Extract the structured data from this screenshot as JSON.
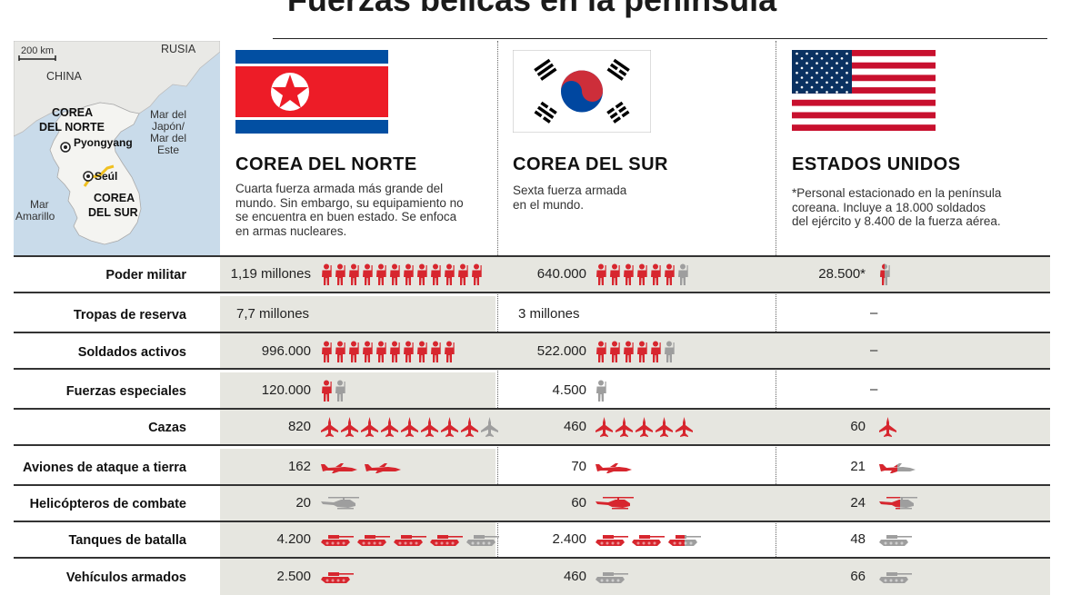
{
  "title": "Fuerzas bélicas en la península",
  "map": {
    "scale": "200 km",
    "labels": {
      "russia": "RUSIA",
      "china": "CHINA",
      "north_korea": [
        "COREA",
        "DEL NORTE"
      ],
      "pyongyang": "Pyongyang",
      "seoul": "Seúl",
      "south_korea": [
        "COREA",
        "DEL SUR"
      ],
      "sea_east": [
        "Mar del",
        "Japón/",
        "Mar del",
        "Este"
      ],
      "sea_yellow": [
        "Mar",
        "Amarillo"
      ]
    }
  },
  "columns": [
    {
      "name": "COREA DEL NORTE",
      "flag": "north-korea-flag",
      "desc": [
        "Cuarta fuerza armada más grande del",
        "mundo. Sin embargo, su equipamiento no",
        "se encuentra en buen estado. Se enfoca",
        "en armas nucleares."
      ]
    },
    {
      "name": "COREA DEL SUR",
      "flag": "south-korea-flag",
      "desc": [
        "Sexta fuerza armada",
        "en el mundo."
      ]
    },
    {
      "name": "ESTADOS UNIDOS",
      "flag": "usa-flag",
      "desc": [
        "*Personal estacionado en la península",
        "coreana. Incluye a 18.000 soldados",
        "del ejército y 8.400 de la fuerza aérea."
      ]
    }
  ],
  "colors": {
    "red": "#d7262e",
    "gray": "#9e9e9e",
    "shade": "#e6e6e0"
  },
  "rows": [
    {
      "label": "Poder militar",
      "icon": "soldier",
      "cells": [
        {
          "value": "1,19 millones",
          "red": 12,
          "gray": 0
        },
        {
          "value": "640.000",
          "red": 6,
          "gray": 1
        },
        {
          "value": "28.500*",
          "red": 0,
          "gray": 0,
          "half": 1
        }
      ]
    },
    {
      "label": "Tropas de reserva",
      "icon": "none",
      "cells": [
        {
          "value": "7,7 millones"
        },
        {
          "value": "3 millones"
        },
        {
          "value": "–"
        }
      ]
    },
    {
      "label": "Soldados activos",
      "icon": "soldier",
      "cells": [
        {
          "value": "996.000",
          "red": 10,
          "gray": 0
        },
        {
          "value": "522.000",
          "red": 5,
          "gray": 1
        },
        {
          "value": "–"
        }
      ]
    },
    {
      "label": "Fuerzas especiales",
      "icon": "soldier",
      "cells": [
        {
          "value": "120.000",
          "red": 1,
          "gray": 1
        },
        {
          "value": "4.500",
          "red": 0,
          "gray": 1
        },
        {
          "value": "–"
        }
      ]
    },
    {
      "label": "Cazas",
      "icon": "jet",
      "cells": [
        {
          "value": "820",
          "red": 8,
          "gray": 1
        },
        {
          "value": "460",
          "red": 5,
          "gray": 0
        },
        {
          "value": "60",
          "red": 1,
          "gray": 0
        }
      ]
    },
    {
      "label": "Aviones de ataque a tierra",
      "icon": "attack-plane",
      "cells": [
        {
          "value": "162",
          "red": 2,
          "gray": 0
        },
        {
          "value": "70",
          "red": 1,
          "gray": 0
        },
        {
          "value": "21",
          "red": 0,
          "gray": 0,
          "half": 1
        }
      ]
    },
    {
      "label": "Helicópteros de combate",
      "icon": "helicopter",
      "cells": [
        {
          "value": "20",
          "red": 0,
          "gray": 1
        },
        {
          "value": "60",
          "red": 1,
          "gray": 0
        },
        {
          "value": "24",
          "red": 0,
          "gray": 0,
          "half": 1
        }
      ]
    },
    {
      "label": "Tanques de batalla",
      "icon": "tank",
      "cells": [
        {
          "value": "4.200",
          "red": 4,
          "gray": 1
        },
        {
          "value": "2.400",
          "red": 2,
          "gray": 0,
          "half": 1
        },
        {
          "value": "48",
          "red": 0,
          "gray": 1
        }
      ]
    },
    {
      "label": "Vehículos armados",
      "icon": "tank",
      "cells": [
        {
          "value": "2.500",
          "red": 1,
          "gray": 0
        },
        {
          "value": "460",
          "red": 0,
          "gray": 1
        },
        {
          "value": "66",
          "red": 0,
          "gray": 1
        }
      ]
    }
  ]
}
